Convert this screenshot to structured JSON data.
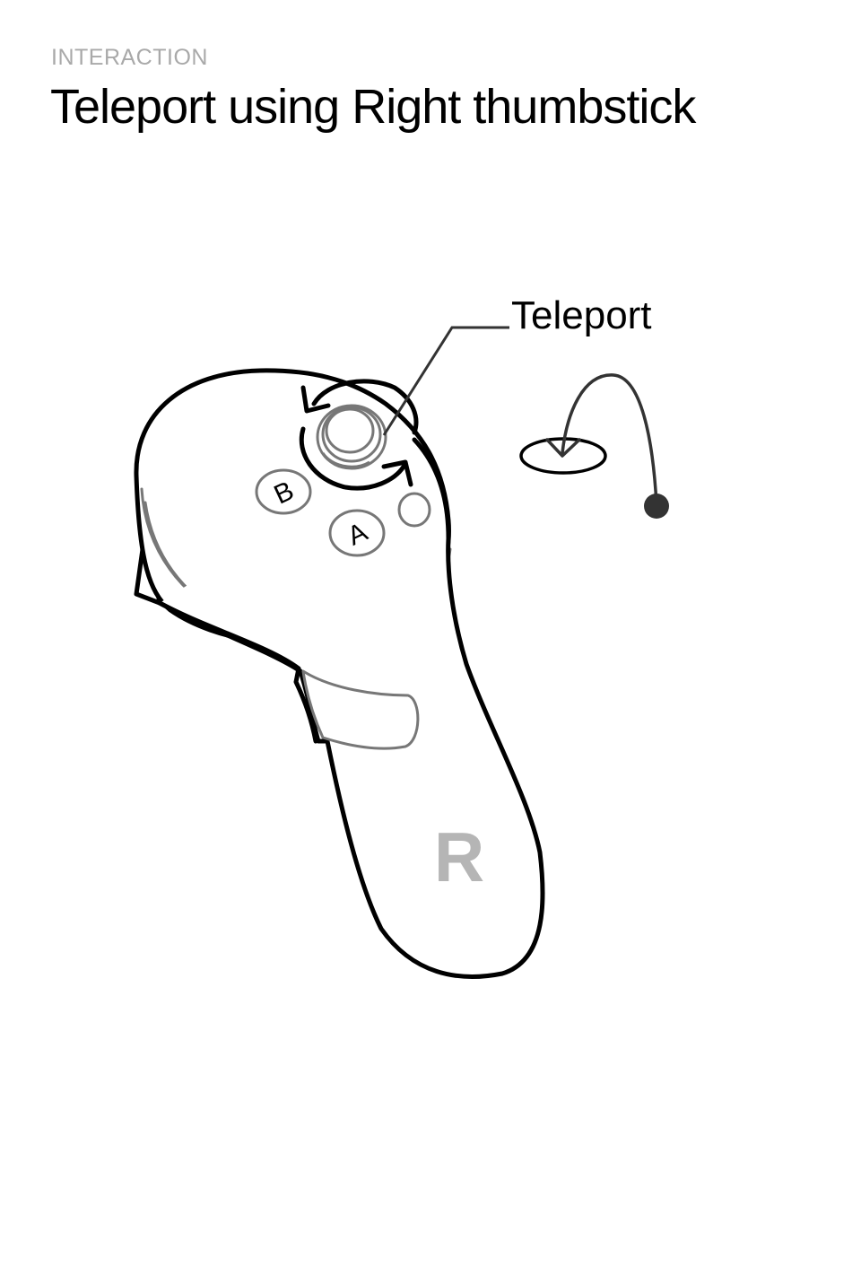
{
  "header": {
    "eyebrow": "INTERACTION",
    "title": "Teleport using Right thumbstick"
  },
  "diagram": {
    "callout_label": "Teleport",
    "buttons": {
      "b_label": "B",
      "a_label": "A"
    },
    "hand_label": "R"
  },
  "colors": {
    "eyebrow": "#a9a9a9",
    "title": "#000000",
    "outline": "#000000",
    "inner_line": "#777777",
    "hand_label": "#b5b5b5",
    "target_dot": "#333333"
  },
  "icons": {
    "rotate_arrows": "rotate-arrows-icon",
    "teleport_arc": "teleport-arc-icon"
  }
}
